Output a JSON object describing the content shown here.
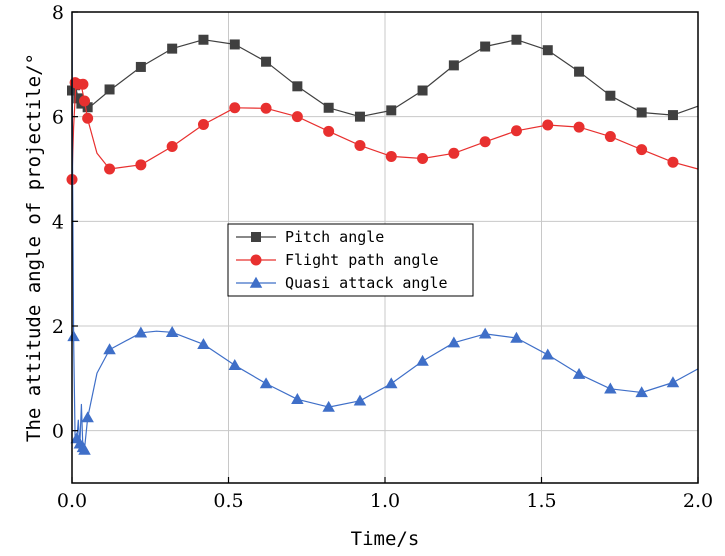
{
  "chart_data": {
    "type": "line",
    "xlabel": "Time/s",
    "ylabel": "The attitude angle of projectile/°",
    "xlim": [
      0,
      2.0
    ],
    "ylim": [
      -1,
      8
    ],
    "xticks": [
      0.0,
      0.5,
      1.0,
      1.5,
      2.0
    ],
    "xtick_labels": [
      "0.0",
      "0.5",
      "1.0",
      "1.5",
      "2.0"
    ],
    "yticks": [
      0,
      2,
      4,
      6,
      8
    ],
    "ytick_labels": [
      "0",
      "2",
      "4",
      "6",
      "8"
    ],
    "grid": true,
    "legend_position": "center",
    "series": [
      {
        "name": "Pitch angle",
        "color": "#404040",
        "marker": "square",
        "curve": [
          [
            0.0,
            6.5
          ],
          [
            0.01,
            6.6
          ],
          [
            0.02,
            6.35
          ],
          [
            0.03,
            6.25
          ],
          [
            0.05,
            6.15
          ],
          [
            0.12,
            6.5
          ],
          [
            0.22,
            6.95
          ],
          [
            0.32,
            7.3
          ],
          [
            0.42,
            7.47
          ],
          [
            0.52,
            7.38
          ],
          [
            0.62,
            7.05
          ],
          [
            0.72,
            6.58
          ],
          [
            0.82,
            6.17
          ],
          [
            0.92,
            6.0
          ],
          [
            1.02,
            6.12
          ],
          [
            1.12,
            6.5
          ],
          [
            1.22,
            6.98
          ],
          [
            1.32,
            7.34
          ],
          [
            1.42,
            7.47
          ],
          [
            1.52,
            7.27
          ],
          [
            1.62,
            6.86
          ],
          [
            1.72,
            6.4
          ],
          [
            1.82,
            6.08
          ],
          [
            1.92,
            6.03
          ],
          [
            2.0,
            6.2
          ]
        ],
        "markers": [
          [
            0.0,
            6.5
          ],
          [
            0.01,
            6.6
          ],
          [
            0.02,
            6.35
          ],
          [
            0.03,
            6.25
          ],
          [
            0.05,
            6.18
          ],
          [
            0.12,
            6.52
          ],
          [
            0.22,
            6.95
          ],
          [
            0.32,
            7.3
          ],
          [
            0.42,
            7.47
          ],
          [
            0.52,
            7.38
          ],
          [
            0.62,
            7.05
          ],
          [
            0.72,
            6.58
          ],
          [
            0.82,
            6.17
          ],
          [
            0.92,
            6.0
          ],
          [
            1.02,
            6.12
          ],
          [
            1.12,
            6.5
          ],
          [
            1.22,
            6.98
          ],
          [
            1.32,
            7.34
          ],
          [
            1.42,
            7.47
          ],
          [
            1.52,
            7.27
          ],
          [
            1.62,
            6.86
          ],
          [
            1.72,
            6.4
          ],
          [
            1.82,
            6.08
          ],
          [
            1.92,
            6.03
          ]
        ]
      },
      {
        "name": "Flight path angle",
        "color": "#e8302f",
        "marker": "circle",
        "curve": [
          [
            0.0,
            4.8
          ],
          [
            0.005,
            5.8
          ],
          [
            0.012,
            6.6
          ],
          [
            0.02,
            6.62
          ],
          [
            0.03,
            6.58
          ],
          [
            0.04,
            6.3
          ],
          [
            0.05,
            5.95
          ],
          [
            0.08,
            5.3
          ],
          [
            0.12,
            5.0
          ],
          [
            0.22,
            5.08
          ],
          [
            0.32,
            5.43
          ],
          [
            0.42,
            5.85
          ],
          [
            0.52,
            6.17
          ],
          [
            0.62,
            6.16
          ],
          [
            0.72,
            6.0
          ],
          [
            0.82,
            5.72
          ],
          [
            0.92,
            5.45
          ],
          [
            1.02,
            5.24
          ],
          [
            1.12,
            5.2
          ],
          [
            1.22,
            5.3
          ],
          [
            1.32,
            5.52
          ],
          [
            1.42,
            5.73
          ],
          [
            1.52,
            5.84
          ],
          [
            1.62,
            5.8
          ],
          [
            1.72,
            5.62
          ],
          [
            1.82,
            5.37
          ],
          [
            1.92,
            5.13
          ],
          [
            2.0,
            5.0
          ]
        ],
        "markers": [
          [
            0.0,
            4.8
          ],
          [
            0.01,
            6.65
          ],
          [
            0.02,
            6.62
          ],
          [
            0.035,
            6.62
          ],
          [
            0.04,
            6.3
          ],
          [
            0.05,
            5.97
          ],
          [
            0.12,
            5.0
          ],
          [
            0.22,
            5.08
          ],
          [
            0.32,
            5.43
          ],
          [
            0.42,
            5.85
          ],
          [
            0.52,
            6.17
          ],
          [
            0.62,
            6.16
          ],
          [
            0.72,
            6.0
          ],
          [
            0.82,
            5.72
          ],
          [
            0.92,
            5.45
          ],
          [
            1.02,
            5.24
          ],
          [
            1.12,
            5.2
          ],
          [
            1.22,
            5.3
          ],
          [
            1.32,
            5.52
          ],
          [
            1.42,
            5.73
          ],
          [
            1.52,
            5.84
          ],
          [
            1.62,
            5.8
          ],
          [
            1.72,
            5.62
          ],
          [
            1.82,
            5.37
          ],
          [
            1.92,
            5.13
          ]
        ]
      },
      {
        "name": "Quasi attack angle",
        "color": "#3f6fc8",
        "marker": "triangle",
        "curve": [
          [
            0.0,
            8.0
          ],
          [
            0.002,
            5.0
          ],
          [
            0.005,
            1.8
          ],
          [
            0.01,
            -0.15
          ],
          [
            0.015,
            -0.2
          ],
          [
            0.02,
            0.2
          ],
          [
            0.025,
            -0.3
          ],
          [
            0.03,
            0.5
          ],
          [
            0.035,
            -0.4
          ],
          [
            0.04,
            -0.35
          ],
          [
            0.05,
            0.25
          ],
          [
            0.08,
            1.1
          ],
          [
            0.12,
            1.55
          ],
          [
            0.22,
            1.87
          ],
          [
            0.27,
            1.9
          ],
          [
            0.32,
            1.88
          ],
          [
            0.42,
            1.65
          ],
          [
            0.52,
            1.25
          ],
          [
            0.62,
            0.9
          ],
          [
            0.72,
            0.6
          ],
          [
            0.82,
            0.45
          ],
          [
            0.92,
            0.57
          ],
          [
            1.02,
            0.9
          ],
          [
            1.12,
            1.33
          ],
          [
            1.22,
            1.68
          ],
          [
            1.32,
            1.85
          ],
          [
            1.42,
            1.77
          ],
          [
            1.52,
            1.45
          ],
          [
            1.62,
            1.08
          ],
          [
            1.72,
            0.8
          ],
          [
            1.82,
            0.73
          ],
          [
            1.92,
            0.92
          ],
          [
            2.0,
            1.18
          ]
        ],
        "markers": [
          [
            0.005,
            1.8
          ],
          [
            0.015,
            -0.15
          ],
          [
            0.025,
            -0.25
          ],
          [
            0.035,
            -0.32
          ],
          [
            0.04,
            -0.37
          ],
          [
            0.05,
            0.25
          ],
          [
            0.12,
            1.55
          ],
          [
            0.22,
            1.87
          ],
          [
            0.32,
            1.88
          ],
          [
            0.42,
            1.65
          ],
          [
            0.52,
            1.25
          ],
          [
            0.62,
            0.9
          ],
          [
            0.72,
            0.6
          ],
          [
            0.82,
            0.45
          ],
          [
            0.92,
            0.57
          ],
          [
            1.02,
            0.9
          ],
          [
            1.12,
            1.33
          ],
          [
            1.22,
            1.68
          ],
          [
            1.32,
            1.85
          ],
          [
            1.42,
            1.77
          ],
          [
            1.52,
            1.45
          ],
          [
            1.62,
            1.08
          ],
          [
            1.72,
            0.8
          ],
          [
            1.82,
            0.73
          ],
          [
            1.92,
            0.92
          ]
        ]
      }
    ]
  }
}
